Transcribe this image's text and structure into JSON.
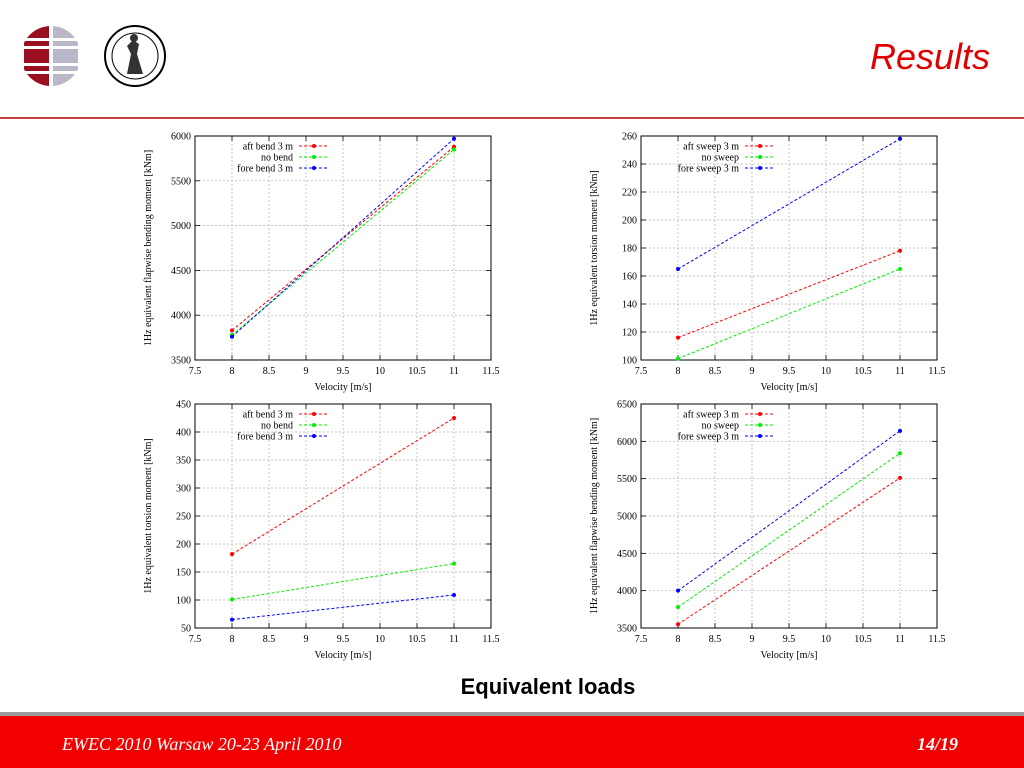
{
  "header": {
    "title": "Results"
  },
  "caption": "Equivalent loads",
  "footer": {
    "conference": "EWEC 2010 Warsaw 20-23 April 2010",
    "page": "14/19"
  },
  "chart_data": [
    {
      "type": "line",
      "xlabel": "Velocity [m/s]",
      "ylabel": "1Hz equivalent flapwise bending moment [kNm]",
      "xlim": [
        7.5,
        11.5
      ],
      "ylim": [
        3500,
        6000
      ],
      "xticks": [
        7.5,
        8,
        8.5,
        9,
        9.5,
        10,
        10.5,
        11,
        11.5
      ],
      "yticks": [
        3500,
        4000,
        4500,
        5000,
        5500,
        6000
      ],
      "grid": true,
      "legend_position": "top-left",
      "x": [
        8,
        11
      ],
      "series": [
        {
          "name": "aft  bend 3 m",
          "color": "#ff0000",
          "values": [
            3830,
            5880
          ]
        },
        {
          "name": "no  bend",
          "color": "#00ee00",
          "values": [
            3780,
            5850
          ]
        },
        {
          "name": "fore bend 3 m",
          "color": "#0000ff",
          "values": [
            3760,
            5970
          ]
        }
      ]
    },
    {
      "type": "line",
      "xlabel": "Velocity [m/s]",
      "ylabel": "1Hz equivalent torsion moment [kNm]",
      "xlim": [
        7.5,
        11.5
      ],
      "ylim": [
        100,
        260
      ],
      "xticks": [
        7.5,
        8,
        8.5,
        9,
        9.5,
        10,
        10.5,
        11,
        11.5
      ],
      "yticks": [
        100,
        120,
        140,
        160,
        180,
        200,
        220,
        240,
        260
      ],
      "grid": true,
      "legend_position": "top-left",
      "x": [
        8,
        11
      ],
      "series": [
        {
          "name": "aft  sweep 3 m",
          "color": "#ff0000",
          "values": [
            116,
            178
          ]
        },
        {
          "name": "no  sweep",
          "color": "#00ee00",
          "values": [
            101,
            165
          ]
        },
        {
          "name": "fore sweep 3 m",
          "color": "#0000ff",
          "values": [
            165,
            258
          ]
        }
      ]
    },
    {
      "type": "line",
      "xlabel": "Velocity [m/s]",
      "ylabel": "1Hz equivalent torsion moment [kNm]",
      "xlim": [
        7.5,
        11.5
      ],
      "ylim": [
        50,
        450
      ],
      "xticks": [
        7.5,
        8,
        8.5,
        9,
        9.5,
        10,
        10.5,
        11,
        11.5
      ],
      "yticks": [
        50,
        100,
        150,
        200,
        250,
        300,
        350,
        400,
        450
      ],
      "grid": true,
      "legend_position": "top-left",
      "x": [
        8,
        11
      ],
      "series": [
        {
          "name": "aft  bend 3 m",
          "color": "#ff0000",
          "values": [
            182,
            425
          ]
        },
        {
          "name": "no  bend",
          "color": "#00ee00",
          "values": [
            101,
            165
          ]
        },
        {
          "name": "fore bend 3 m",
          "color": "#0000ff",
          "values": [
            65,
            109
          ]
        }
      ]
    },
    {
      "type": "line",
      "xlabel": "Velocity [m/s]",
      "ylabel": "1Hz equivalent flapwise bending moment [kNm]",
      "xlim": [
        7.5,
        11.5
      ],
      "ylim": [
        3500,
        6500
      ],
      "xticks": [
        7.5,
        8,
        8.5,
        9,
        9.5,
        10,
        10.5,
        11,
        11.5
      ],
      "yticks": [
        3500,
        4000,
        4500,
        5000,
        5500,
        6000,
        6500
      ],
      "grid": true,
      "legend_position": "top-left",
      "x": [
        8,
        11
      ],
      "series": [
        {
          "name": "aft  sweep 3 m",
          "color": "#ff0000",
          "values": [
            3550,
            5510
          ]
        },
        {
          "name": "no  sweep",
          "color": "#00ee00",
          "values": [
            3780,
            5840
          ]
        },
        {
          "name": "fore sweep 3 m",
          "color": "#0000ff",
          "values": [
            4000,
            6140
          ]
        }
      ]
    }
  ]
}
